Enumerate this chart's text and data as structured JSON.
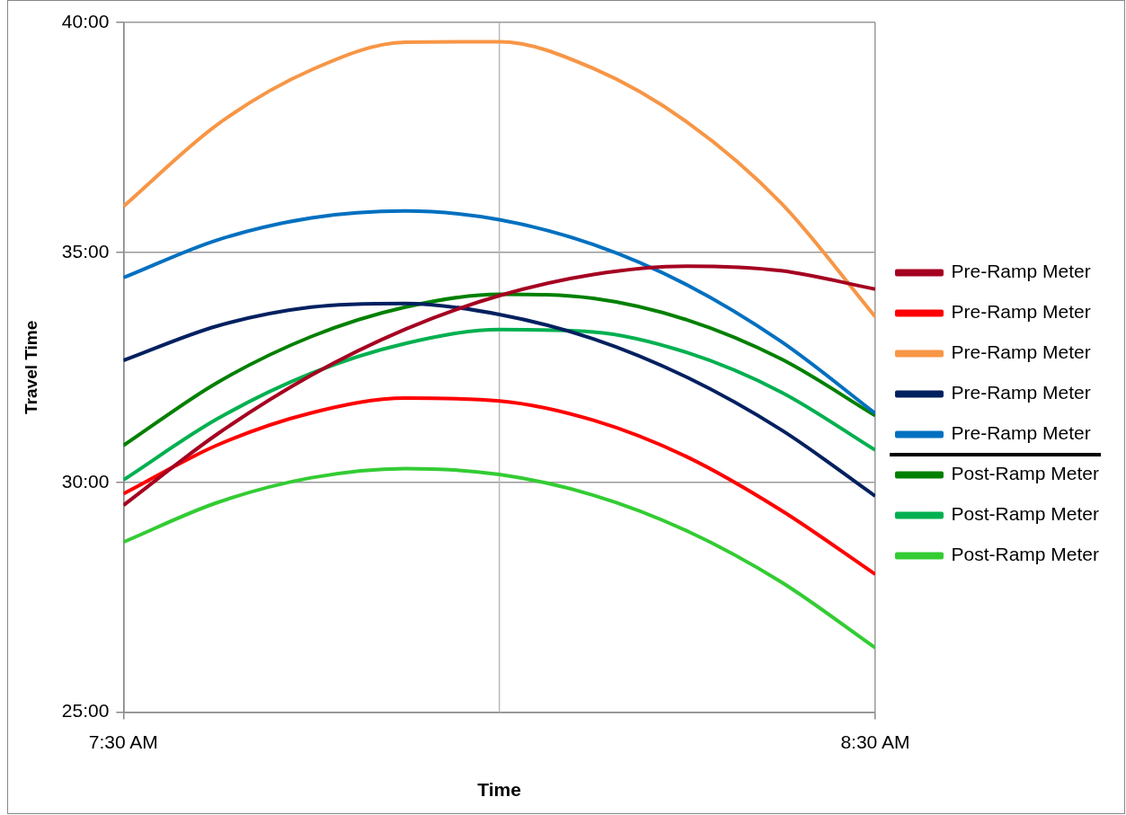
{
  "chart_data": {
    "type": "line",
    "xlabel": "Time",
    "ylabel": "Travel Time",
    "x": [
      7.5,
      7.625,
      7.75,
      7.875,
      8.0,
      8.125,
      8.25,
      8.375,
      8.5
    ],
    "xlim": [
      7.5,
      8.5
    ],
    "xticks": [
      {
        "value": 7.5,
        "label": "7:30 AM"
      },
      {
        "value": 8.5,
        "label": "8:30 AM"
      }
    ],
    "ref_lines": [
      {
        "axis": "x",
        "value": 8,
        "color": "#bbbbbb"
      }
    ],
    "ylim": [
      25,
      40
    ],
    "yticks": [
      {
        "value": 25,
        "label": "25:00"
      },
      {
        "value": 30,
        "label": "30:00"
      },
      {
        "value": 35,
        "label": "35:00"
      },
      {
        "value": 40,
        "label": "40:00"
      }
    ],
    "grid": true,
    "legend": "right",
    "marker": "none",
    "line_style": "solid",
    "series": [
      {
        "name": "Pre-Ramp Meter",
        "color": "#a50021",
        "values": [
          29.5,
          31.05,
          32.33,
          33.33,
          34.06,
          34.52,
          34.7,
          34.6,
          34.2
        ]
      },
      {
        "name": "Pre-Ramp Meter",
        "color": "#ff0000",
        "values": [
          29.75,
          30.81,
          31.51,
          31.83,
          31.77,
          31.35,
          30.55,
          29.39,
          28.0
        ]
      },
      {
        "name": "Pre-Ramp Meter",
        "color": "#f79646",
        "values": [
          36.0,
          37.78,
          38.97,
          39.57,
          39.58,
          39.0,
          37.83,
          36.07,
          33.6
        ]
      },
      {
        "name": "Pre-Ramp Meter",
        "color": "#002060",
        "values": [
          32.65,
          33.4,
          33.81,
          33.89,
          33.65,
          33.12,
          32.28,
          31.14,
          29.7
        ]
      },
      {
        "name": "Pre-Ramp Meter",
        "color": "#0070c0",
        "values": [
          34.45,
          35.27,
          35.75,
          35.9,
          35.71,
          35.17,
          34.29,
          33.06,
          31.5
        ]
      },
      {
        "name": "Post-Ramp Meter",
        "color": "#008000",
        "values": [
          30.8,
          32.17,
          33.17,
          33.81,
          34.09,
          34.0,
          33.53,
          32.68,
          31.45
        ]
      },
      {
        "name": "Post-Ramp Meter",
        "color": "#00b050",
        "values": [
          30.05,
          31.38,
          32.37,
          33.02,
          33.32,
          33.27,
          32.82,
          31.96,
          30.7
        ]
      },
      {
        "name": "Post-Ramp Meter",
        "color": "#33cc33",
        "values": [
          28.7,
          29.56,
          30.1,
          30.3,
          30.17,
          29.72,
          28.94,
          27.83,
          26.4
        ]
      }
    ]
  }
}
